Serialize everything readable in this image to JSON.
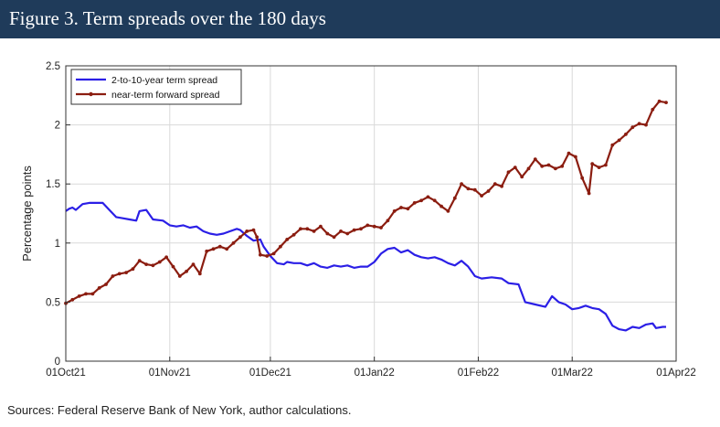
{
  "header": {
    "title": "Figure 3. Term spreads over the 180 days"
  },
  "footer": {
    "sources": "Sources: Federal Reserve Bank of New York, author calculations."
  },
  "colors": {
    "header_bg": "#1f3b5a",
    "series_term": "#2b1fe6",
    "series_forward": "#8b1d10"
  },
  "chart_data": {
    "type": "line",
    "title": "",
    "xlabel": "",
    "ylabel": "Percentage points",
    "x_ticks": [
      "01Oct21",
      "01Nov21",
      "01Dec21",
      "01Jan22",
      "01Feb22",
      "01Mar22",
      "01Apr22"
    ],
    "y_ticks": [
      "0",
      "0.5",
      "1",
      "1.5",
      "2",
      "2.5"
    ],
    "xlim": [
      "2021-10-01",
      "2022-04-01"
    ],
    "ylim": [
      0,
      2.5
    ],
    "grid": true,
    "legend": "top-left",
    "series": [
      {
        "name": "2-to-10-year term spread",
        "color": "#2b1fe6",
        "marker": "none",
        "points": [
          [
            "2021-10-01",
            1.27
          ],
          [
            "2021-10-02",
            1.29
          ],
          [
            "2021-10-03",
            1.3
          ],
          [
            "2021-10-04",
            1.28
          ],
          [
            "2021-10-06",
            1.33
          ],
          [
            "2021-10-08",
            1.34
          ],
          [
            "2021-10-12",
            1.34
          ],
          [
            "2021-10-14",
            1.28
          ],
          [
            "2021-10-16",
            1.22
          ],
          [
            "2021-10-18",
            1.21
          ],
          [
            "2021-10-20",
            1.2
          ],
          [
            "2021-10-22",
            1.19
          ],
          [
            "2021-10-23",
            1.27
          ],
          [
            "2021-10-25",
            1.28
          ],
          [
            "2021-10-27",
            1.2
          ],
          [
            "2021-10-30",
            1.19
          ],
          [
            "2021-11-01",
            1.15
          ],
          [
            "2021-11-03",
            1.14
          ],
          [
            "2021-11-05",
            1.15
          ],
          [
            "2021-11-07",
            1.13
          ],
          [
            "2021-11-09",
            1.14
          ],
          [
            "2021-11-11",
            1.1
          ],
          [
            "2021-11-13",
            1.08
          ],
          [
            "2021-11-15",
            1.07
          ],
          [
            "2021-11-17",
            1.08
          ],
          [
            "2021-11-19",
            1.1
          ],
          [
            "2021-11-21",
            1.12
          ],
          [
            "2021-11-22",
            1.11
          ],
          [
            "2021-11-24",
            1.06
          ],
          [
            "2021-11-26",
            1.02
          ],
          [
            "2021-11-28",
            1.03
          ],
          [
            "2021-11-29",
            0.97
          ],
          [
            "2021-12-01",
            0.89
          ],
          [
            "2021-12-03",
            0.83
          ],
          [
            "2021-12-05",
            0.82
          ],
          [
            "2021-12-06",
            0.84
          ],
          [
            "2021-12-08",
            0.83
          ],
          [
            "2021-12-10",
            0.83
          ],
          [
            "2021-12-12",
            0.81
          ],
          [
            "2021-12-14",
            0.83
          ],
          [
            "2021-12-16",
            0.8
          ],
          [
            "2021-12-18",
            0.79
          ],
          [
            "2021-12-20",
            0.81
          ],
          [
            "2021-12-22",
            0.8
          ],
          [
            "2021-12-24",
            0.81
          ],
          [
            "2021-12-26",
            0.79
          ],
          [
            "2021-12-28",
            0.8
          ],
          [
            "2021-12-30",
            0.8
          ],
          [
            "2022-01-01",
            0.84
          ],
          [
            "2022-01-03",
            0.91
          ],
          [
            "2022-01-05",
            0.95
          ],
          [
            "2022-01-07",
            0.96
          ],
          [
            "2022-01-09",
            0.92
          ],
          [
            "2022-01-11",
            0.94
          ],
          [
            "2022-01-13",
            0.9
          ],
          [
            "2022-01-15",
            0.88
          ],
          [
            "2022-01-17",
            0.87
          ],
          [
            "2022-01-19",
            0.88
          ],
          [
            "2022-01-21",
            0.86
          ],
          [
            "2022-01-23",
            0.83
          ],
          [
            "2022-01-25",
            0.81
          ],
          [
            "2022-01-27",
            0.85
          ],
          [
            "2022-01-29",
            0.8
          ],
          [
            "2022-01-31",
            0.72
          ],
          [
            "2022-02-02",
            0.7
          ],
          [
            "2022-02-05",
            0.71
          ],
          [
            "2022-02-08",
            0.7
          ],
          [
            "2022-02-10",
            0.66
          ],
          [
            "2022-02-13",
            0.65
          ],
          [
            "2022-02-15",
            0.5
          ],
          [
            "2022-02-18",
            0.48
          ],
          [
            "2022-02-21",
            0.46
          ],
          [
            "2022-02-23",
            0.55
          ],
          [
            "2022-02-25",
            0.5
          ],
          [
            "2022-02-27",
            0.48
          ],
          [
            "2022-03-01",
            0.44
          ],
          [
            "2022-03-03",
            0.45
          ],
          [
            "2022-03-05",
            0.47
          ],
          [
            "2022-03-07",
            0.45
          ],
          [
            "2022-03-09",
            0.44
          ],
          [
            "2022-03-11",
            0.4
          ],
          [
            "2022-03-13",
            0.3
          ],
          [
            "2022-03-15",
            0.27
          ],
          [
            "2022-03-17",
            0.26
          ],
          [
            "2022-03-19",
            0.29
          ],
          [
            "2022-03-21",
            0.28
          ],
          [
            "2022-03-23",
            0.31
          ],
          [
            "2022-03-25",
            0.32
          ],
          [
            "2022-03-26",
            0.28
          ],
          [
            "2022-03-28",
            0.29
          ],
          [
            "2022-03-29",
            0.29
          ]
        ]
      },
      {
        "name": "near-term forward spread",
        "color": "#8b1d10",
        "marker": "dot",
        "points": [
          [
            "2021-10-01",
            0.49
          ],
          [
            "2021-10-03",
            0.52
          ],
          [
            "2021-10-05",
            0.55
          ],
          [
            "2021-10-07",
            0.57
          ],
          [
            "2021-10-09",
            0.57
          ],
          [
            "2021-10-11",
            0.62
          ],
          [
            "2021-10-13",
            0.65
          ],
          [
            "2021-10-15",
            0.72
          ],
          [
            "2021-10-17",
            0.74
          ],
          [
            "2021-10-19",
            0.75
          ],
          [
            "2021-10-21",
            0.78
          ],
          [
            "2021-10-23",
            0.85
          ],
          [
            "2021-10-25",
            0.82
          ],
          [
            "2021-10-27",
            0.81
          ],
          [
            "2021-10-29",
            0.84
          ],
          [
            "2021-10-31",
            0.88
          ],
          [
            "2021-11-02",
            0.8
          ],
          [
            "2021-11-04",
            0.72
          ],
          [
            "2021-11-06",
            0.76
          ],
          [
            "2021-11-08",
            0.82
          ],
          [
            "2021-11-10",
            0.74
          ],
          [
            "2021-11-12",
            0.93
          ],
          [
            "2021-11-14",
            0.95
          ],
          [
            "2021-11-16",
            0.97
          ],
          [
            "2021-11-18",
            0.95
          ],
          [
            "2021-11-20",
            1.0
          ],
          [
            "2021-11-22",
            1.05
          ],
          [
            "2021-11-24",
            1.1
          ],
          [
            "2021-11-26",
            1.11
          ],
          [
            "2021-11-27",
            1.05
          ],
          [
            "2021-11-28",
            0.9
          ],
          [
            "2021-11-30",
            0.89
          ],
          [
            "2021-12-02",
            0.91
          ],
          [
            "2021-12-04",
            0.97
          ],
          [
            "2021-12-06",
            1.03
          ],
          [
            "2021-12-08",
            1.07
          ],
          [
            "2021-12-10",
            1.12
          ],
          [
            "2021-12-12",
            1.12
          ],
          [
            "2021-12-14",
            1.1
          ],
          [
            "2021-12-16",
            1.14
          ],
          [
            "2021-12-18",
            1.08
          ],
          [
            "2021-12-20",
            1.05
          ],
          [
            "2021-12-22",
            1.1
          ],
          [
            "2021-12-24",
            1.08
          ],
          [
            "2021-12-26",
            1.11
          ],
          [
            "2021-12-28",
            1.12
          ],
          [
            "2021-12-30",
            1.15
          ],
          [
            "2022-01-01",
            1.14
          ],
          [
            "2022-01-03",
            1.13
          ],
          [
            "2022-01-05",
            1.19
          ],
          [
            "2022-01-07",
            1.27
          ],
          [
            "2022-01-09",
            1.3
          ],
          [
            "2022-01-11",
            1.29
          ],
          [
            "2022-01-13",
            1.34
          ],
          [
            "2022-01-15",
            1.36
          ],
          [
            "2022-01-17",
            1.39
          ],
          [
            "2022-01-19",
            1.36
          ],
          [
            "2022-01-21",
            1.31
          ],
          [
            "2022-01-23",
            1.27
          ],
          [
            "2022-01-25",
            1.38
          ],
          [
            "2022-01-27",
            1.5
          ],
          [
            "2022-01-29",
            1.46
          ],
          [
            "2022-01-31",
            1.45
          ],
          [
            "2022-02-02",
            1.4
          ],
          [
            "2022-02-04",
            1.44
          ],
          [
            "2022-02-06",
            1.5
          ],
          [
            "2022-02-08",
            1.48
          ],
          [
            "2022-02-10",
            1.6
          ],
          [
            "2022-02-12",
            1.64
          ],
          [
            "2022-02-14",
            1.56
          ],
          [
            "2022-02-16",
            1.63
          ],
          [
            "2022-02-18",
            1.71
          ],
          [
            "2022-02-20",
            1.65
          ],
          [
            "2022-02-22",
            1.66
          ],
          [
            "2022-02-24",
            1.63
          ],
          [
            "2022-02-26",
            1.65
          ],
          [
            "2022-02-28",
            1.76
          ],
          [
            "2022-03-02",
            1.73
          ],
          [
            "2022-03-04",
            1.55
          ],
          [
            "2022-03-06",
            1.42
          ],
          [
            "2022-03-07",
            1.67
          ],
          [
            "2022-03-09",
            1.64
          ],
          [
            "2022-03-11",
            1.66
          ],
          [
            "2022-03-13",
            1.83
          ],
          [
            "2022-03-15",
            1.87
          ],
          [
            "2022-03-17",
            1.92
          ],
          [
            "2022-03-19",
            1.98
          ],
          [
            "2022-03-21",
            2.01
          ],
          [
            "2022-03-23",
            2.0
          ],
          [
            "2022-03-25",
            2.13
          ],
          [
            "2022-03-27",
            2.2
          ],
          [
            "2022-03-29",
            2.19
          ]
        ]
      }
    ]
  }
}
